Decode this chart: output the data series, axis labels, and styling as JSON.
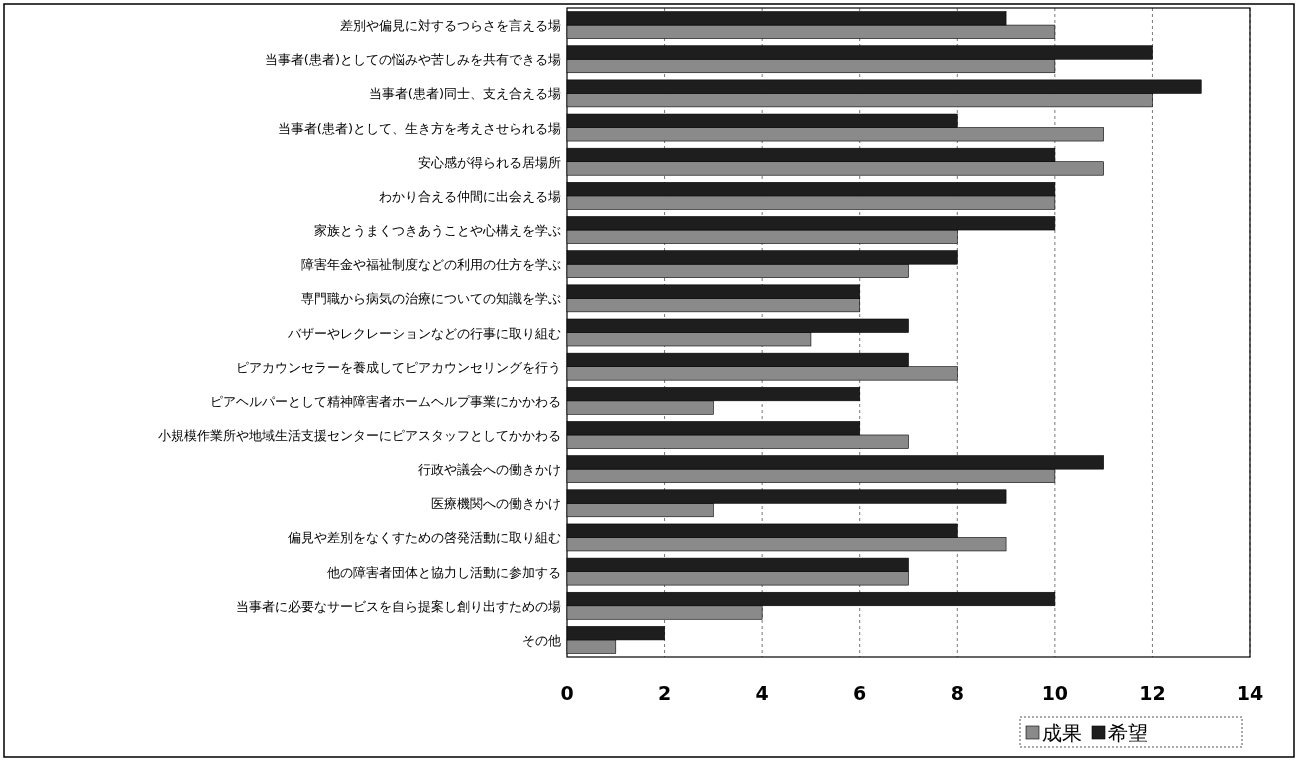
{
  "chart_data": {
    "type": "bar",
    "orientation": "horizontal",
    "categories": [
      "差別や偏見に対するつらさを言える場",
      "当事者(患者)としての悩みや苦しみを共有できる場",
      "当事者(患者)同士、支え合える場",
      "当事者(患者)として、生き方を考えさせられる場",
      "安心感が得られる居場所",
      "わかり合える仲間に出会える場",
      "家族とうまくつきあうことや心構えを学ぶ",
      "障害年金や福祉制度などの利用の仕方を学ぶ",
      "専門職から病気の治療についての知識を学ぶ",
      "バザーやレクレーションなどの行事に取り組む",
      "ピアカウンセラーを養成してピアカウンセリングを行う",
      "ピアヘルパーとして精神障害者ホームヘルプ事業にかかわる",
      "小規模作業所や地域生活支援センターにピアスタッフとしてかかわる",
      "行政や議会への働きかけ",
      "医療機関への働きかけ",
      "偏見や差別をなくすための啓発活動に取り組む",
      "他の障害者団体と協力し活動に参加する",
      "当事者に必要なサービスを自ら提案し創り出すための場",
      "その他"
    ],
    "series": [
      {
        "name": "成果",
        "color": "#8a8a8a",
        "values": [
          10,
          10,
          12,
          11,
          11,
          10,
          8,
          7,
          6,
          5,
          8,
          3,
          7,
          10,
          3,
          9,
          7,
          4,
          1
        ]
      },
      {
        "name": "希望",
        "color": "#1e1e1e",
        "values": [
          9,
          12,
          13,
          8,
          10,
          10,
          10,
          8,
          6,
          7,
          7,
          6,
          6,
          11,
          9,
          8,
          7,
          10,
          2
        ]
      }
    ],
    "xlim": [
      0,
      14
    ],
    "xticks": [
      0,
      2,
      4,
      6,
      8,
      10,
      12,
      14
    ],
    "grid": "x",
    "legend": "bottom right"
  }
}
